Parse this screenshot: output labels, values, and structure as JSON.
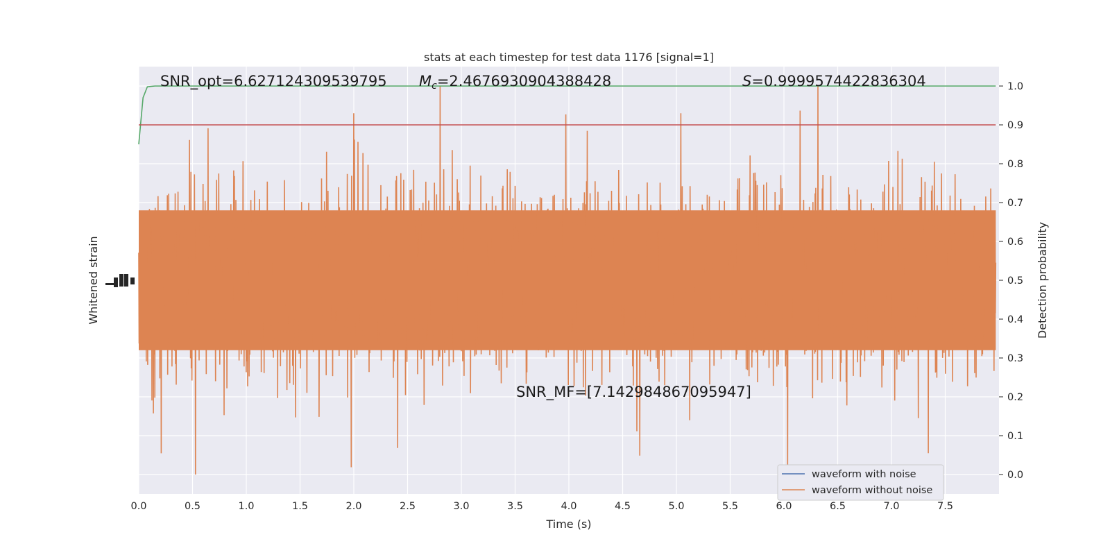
{
  "chart_data": {
    "type": "line",
    "title": "stats at each timestep for test data 1176 [signal=1]",
    "xlabel": "Time (s)",
    "ylabel_left": "Whitened strain",
    "ylabel_right": "Detection probability",
    "xlim": [
      0,
      8
    ],
    "ylim_right": [
      -0.05,
      1.05
    ],
    "x_ticks": [
      0.0,
      0.5,
      1.0,
      1.5,
      2.0,
      2.5,
      3.0,
      3.5,
      4.0,
      4.5,
      5.0,
      5.5,
      6.0,
      6.5,
      7.0,
      7.5
    ],
    "x_tick_labels": [
      "0.0",
      "0.5",
      "1.0",
      "1.5",
      "2.0",
      "2.5",
      "3.0",
      "3.5",
      "4.0",
      "4.5",
      "5.0",
      "5.5",
      "6.0",
      "6.5",
      "7.0",
      "7.5"
    ],
    "y_right_ticks": [
      0.0,
      0.1,
      0.2,
      0.3,
      0.4,
      0.5,
      0.6,
      0.7,
      0.8,
      0.9,
      1.0
    ],
    "y_right_tick_labels": [
      "0.0",
      "0.1",
      "0.2",
      "0.3",
      "0.4",
      "0.5",
      "0.6",
      "0.7",
      "0.8",
      "0.9",
      "1.0"
    ],
    "grid": true,
    "legend_position": "bottom-right",
    "series": [
      {
        "name": "waveform with noise",
        "color": "#4c72b0",
        "axis": "left"
      },
      {
        "name": "waveform without noise",
        "color": "#dd8452",
        "axis": "left"
      },
      {
        "color": "#55a868",
        "axis": "right",
        "x": [
          0.0,
          0.04,
          0.08,
          0.15,
          0.3,
          7.97
        ],
        "y": [
          0.85,
          0.97,
          0.998,
          1.0,
          1.0,
          1.0
        ]
      },
      {
        "color": "#c44e52",
        "axis": "right",
        "x": [
          0.0,
          7.97
        ],
        "y": [
          0.9,
          0.9
        ]
      }
    ],
    "annotations": {
      "snr_opt": "SNR_opt=6.627124309539795",
      "mc_symbol": "M",
      "mc_subscript": "c",
      "mc_value": "=2.4676930904388428",
      "s_symbol": "S",
      "s_value": "=0.9999574422836304",
      "snr_mf": "SNR_MF=[7.142984867095947]"
    }
  }
}
